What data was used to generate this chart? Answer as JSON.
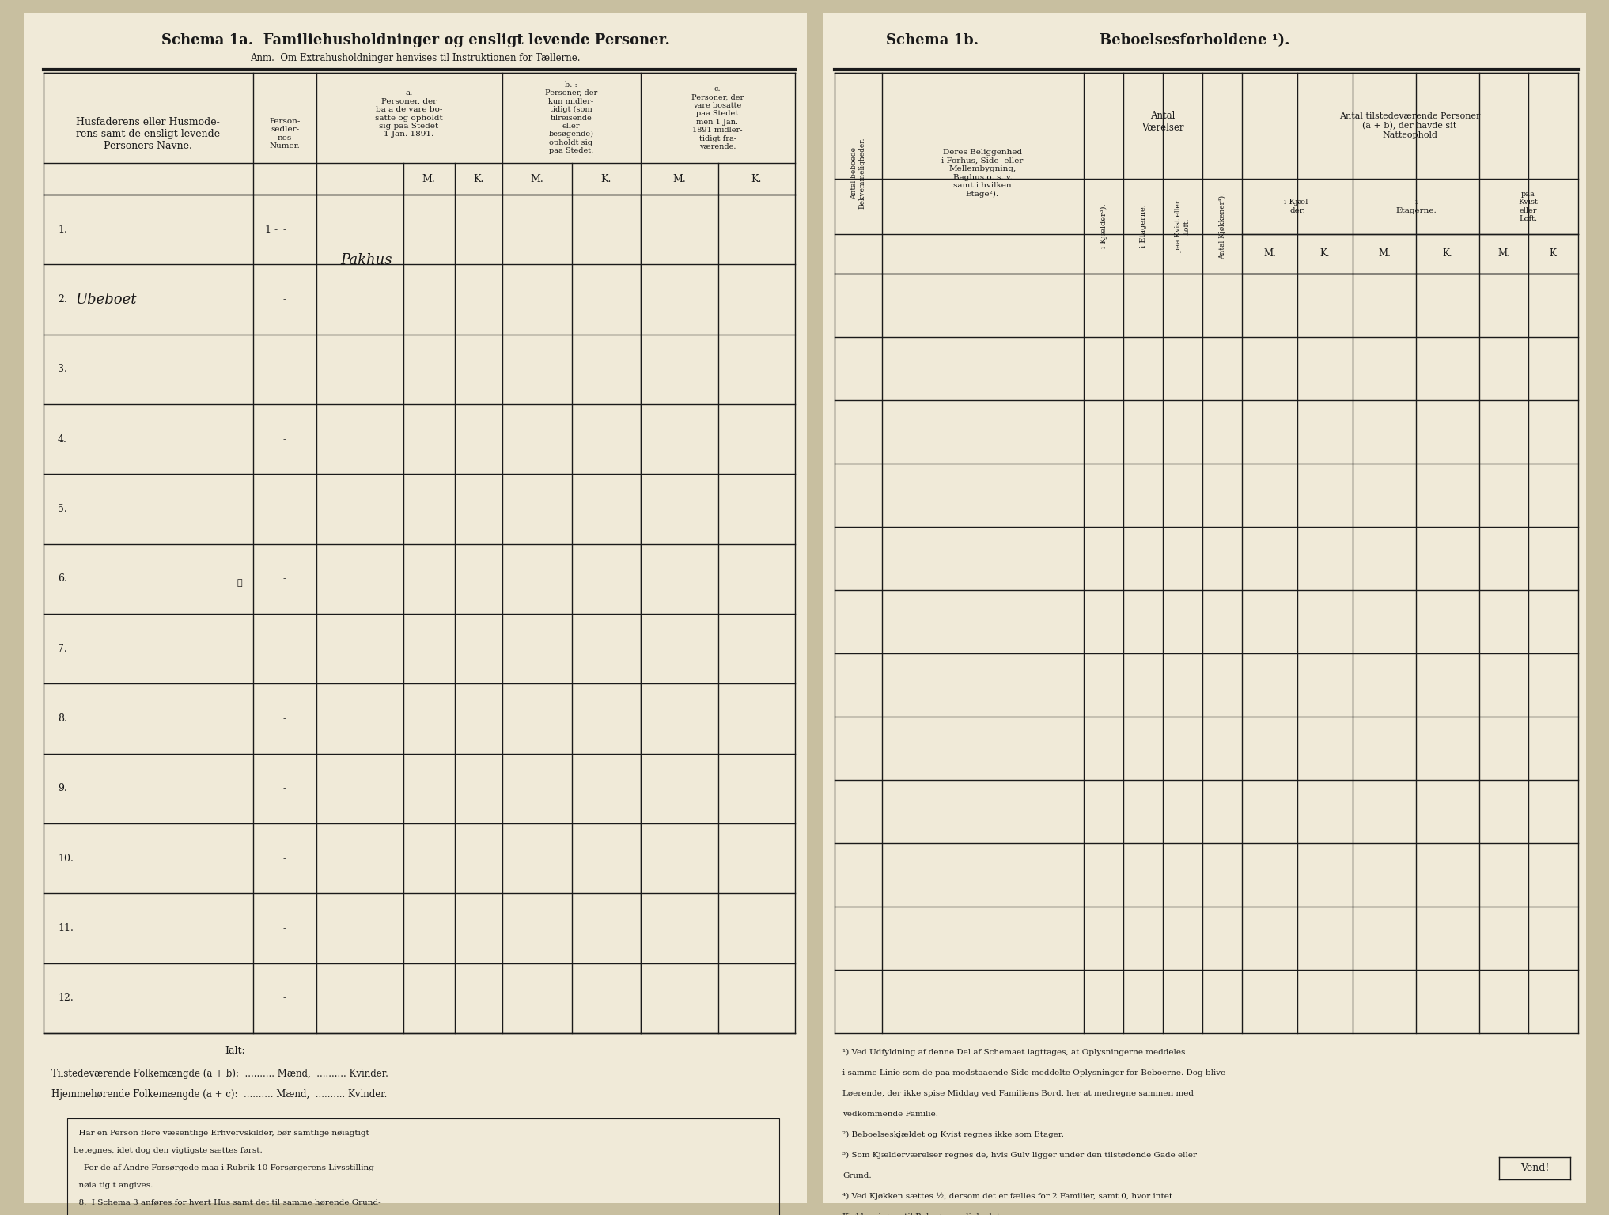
{
  "bg_color": "#f0ead8",
  "dark_color": "#1a1a1a",
  "page_bg": "#c8bfa0",
  "title_left": "Schema 1a.  Familiehusholdninger og ensligt levende Personer.",
  "anm_left": "Anm.  Om Extrahusholdninger henvises til Instruktionen for Tællerne.",
  "title_right": "Schema 1b.",
  "title_right2": "Beboelsesforholdene ¹).",
  "row_labels": [
    "1.",
    "2.",
    "3.",
    "4.",
    "5.",
    "6.",
    "7.",
    "8.",
    "9.",
    "10.",
    "11.",
    "12."
  ],
  "vend_text": "Vend!"
}
